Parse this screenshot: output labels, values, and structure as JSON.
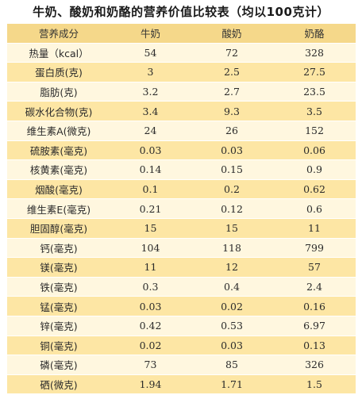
{
  "title": "牛奶、酸奶和奶酪的营养价值比较表（均以100克计）",
  "colors": {
    "header_bg": "#f5d88a",
    "row_light": "#fff7df",
    "row_dark": "#fde6a4"
  },
  "table": {
    "headers": [
      "营养成分",
      "牛奶",
      "酸奶",
      "奶酪"
    ],
    "rows": [
      [
        "热量（kcal）",
        "54",
        "72",
        "328"
      ],
      [
        "蛋白质(克)",
        "3",
        "2.5",
        "27.5"
      ],
      [
        "脂肪(克)",
        "3.2",
        "2.7",
        "23.5"
      ],
      [
        "碳水化合物(克)",
        "3.4",
        "9.3",
        "3.5"
      ],
      [
        "维生素A(微克)",
        "24",
        "26",
        "152"
      ],
      [
        "硫胺素(毫克)",
        "0.03",
        "0.03",
        "0.06"
      ],
      [
        "核黄素(毫克)",
        "0.14",
        "0.15",
        "0.9"
      ],
      [
        "烟酸(毫克)",
        "0.1",
        "0.2",
        "0.62"
      ],
      [
        "维生素E(毫克)",
        "0.21",
        "0.12",
        "0.6"
      ],
      [
        "胆固醇(毫克)",
        "15",
        "15",
        "11"
      ],
      [
        "钙(毫克)",
        "104",
        "118",
        "799"
      ],
      [
        "镁(毫克)",
        "11",
        "12",
        "57"
      ],
      [
        "铁(毫克)",
        "0.3",
        "0.4",
        "2.4"
      ],
      [
        "锰(毫克)",
        "0.03",
        "0.02",
        "0.16"
      ],
      [
        "锌(毫克)",
        "0.42",
        "0.53",
        "6.97"
      ],
      [
        "铜(毫克)",
        "0.02",
        "0.03",
        "0.13"
      ],
      [
        "磷(毫克)",
        "73",
        "85",
        "326"
      ],
      [
        "硒(微克)",
        "1.94",
        "1.71",
        "1.5"
      ]
    ]
  }
}
